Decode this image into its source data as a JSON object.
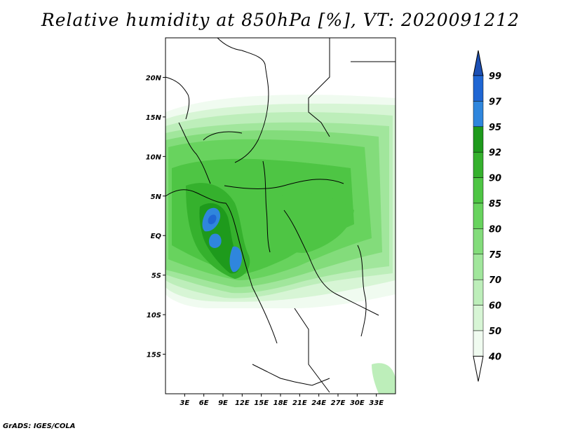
{
  "title": "Relative humidity at 850hPa [%], VT: 2020091212",
  "footer": "GrADS: IGES/COLA",
  "colors": {
    "c40": "#f0fbf0",
    "c50": "#d7f5d5",
    "c60": "#bdeeba",
    "c70": "#a1e69c",
    "c75": "#83dc7b",
    "c80": "#68d35e",
    "c85": "#4ec544",
    "c90": "#35b12d",
    "c92": "#1e9a1c",
    "c95": "#2f86dd",
    "c97": "#1f66d3",
    "c99": "#1b4fb4"
  },
  "map": {
    "lat_labels": [
      {
        "text": "20N",
        "lat": 20
      },
      {
        "text": "15N",
        "lat": 15
      },
      {
        "text": "10N",
        "lat": 10
      },
      {
        "text": "5N",
        "lat": 5
      },
      {
        "text": "EQ",
        "lat": 0
      },
      {
        "text": "5S",
        "lat": -5
      },
      {
        "text": "10S",
        "lat": -10
      },
      {
        "text": "15S",
        "lat": -15
      }
    ],
    "lon_labels": [
      {
        "text": "3E",
        "lon": 3
      },
      {
        "text": "6E",
        "lon": 6
      },
      {
        "text": "9E",
        "lon": 9
      },
      {
        "text": "12E",
        "lon": 12
      },
      {
        "text": "15E",
        "lon": 15
      },
      {
        "text": "18E",
        "lon": 18
      },
      {
        "text": "21E",
        "lon": 21
      },
      {
        "text": "24E",
        "lon": 24
      },
      {
        "text": "27E",
        "lon": 27
      },
      {
        "text": "30E",
        "lon": 30
      },
      {
        "text": "33E",
        "lon": 33
      }
    ]
  },
  "colorbar": {
    "labels": [
      "99",
      "97",
      "95",
      "92",
      "90",
      "85",
      "80",
      "75",
      "70",
      "60",
      "50",
      "40"
    ]
  }
}
